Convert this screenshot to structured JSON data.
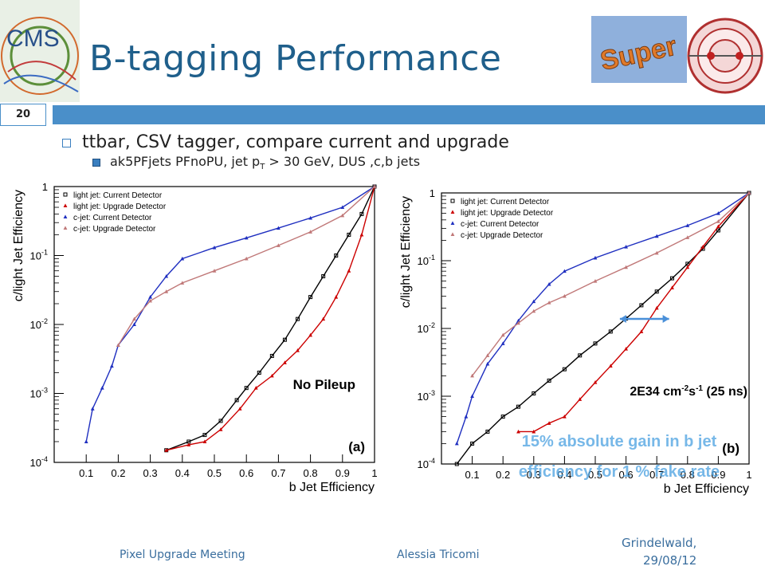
{
  "slide": {
    "title": "B-tagging Performance",
    "number": "20",
    "bullet1": "ttbar, CSV tagger, compare current and upgrade",
    "bullet2": {
      "pre": "ak5PFjets PFnoPU, jet p",
      "sub": "T",
      "post": " > 30 GeV, DUS ,c,b jets"
    },
    "footer_left": "Pixel Upgrade Meeting",
    "footer_center": "Alessia Tricomi",
    "footer_right": "Grindelwald,\n29/08/12",
    "logo_cms_text": "CMS",
    "logo_super_text": "Super",
    "colors": {
      "title": "#1f5f8b",
      "bar": "#4a8fc9",
      "footer": "#3a6e9e"
    }
  },
  "chart_data": [
    {
      "type": "scatter",
      "panel_label": "(a)",
      "annotation": "No Pileup",
      "xlabel": "b Jet Efficiency",
      "ylabel": "c/light Jet Efficiency",
      "xlim": [
        0.0,
        1.0
      ],
      "ylim": [
        0.0001,
        1
      ],
      "yscale": "log",
      "xticks": [
        "0.1",
        "0.2",
        "0.3",
        "0.4",
        "0.5",
        "0.6",
        "0.7",
        "0.8",
        "0.9",
        "1"
      ],
      "yticks": [
        {
          "v": 1,
          "b": "1",
          "e": ""
        },
        {
          "v": 0.1,
          "b": "10",
          "e": "-1"
        },
        {
          "v": 0.01,
          "b": "10",
          "e": "-2"
        },
        {
          "v": 0.001,
          "b": "10",
          "e": "-3"
        },
        {
          "v": 0.0001,
          "b": "10",
          "e": "-4"
        }
      ],
      "legend_position": "top-left",
      "series": [
        {
          "name": "light jet: Current Detector",
          "color": "#000000",
          "marker": "square",
          "x": [
            0.35,
            0.42,
            0.47,
            0.52,
            0.57,
            0.6,
            0.64,
            0.68,
            0.72,
            0.76,
            0.8,
            0.84,
            0.88,
            0.92,
            0.96,
            1.0
          ],
          "y": [
            0.00015,
            0.0002,
            0.00025,
            0.0004,
            0.0008,
            0.0012,
            0.002,
            0.0035,
            0.006,
            0.012,
            0.025,
            0.05,
            0.1,
            0.2,
            0.4,
            1.0
          ]
        },
        {
          "name": "light jet: Upgrade Detector",
          "color": "#cc0000",
          "marker": "triangle",
          "x": [
            0.35,
            0.42,
            0.47,
            0.52,
            0.58,
            0.63,
            0.68,
            0.72,
            0.76,
            0.8,
            0.84,
            0.88,
            0.92,
            0.96,
            1.0
          ],
          "y": [
            0.00015,
            0.00018,
            0.0002,
            0.0003,
            0.0006,
            0.0012,
            0.0018,
            0.0028,
            0.0042,
            0.007,
            0.012,
            0.025,
            0.06,
            0.2,
            1.0
          ]
        },
        {
          "name": "c-jet: Current Detector",
          "color": "#1f2fc0",
          "marker": "triangle",
          "x": [
            0.1,
            0.12,
            0.15,
            0.18,
            0.2,
            0.25,
            0.3,
            0.35,
            0.4,
            0.5,
            0.6,
            0.7,
            0.8,
            0.9,
            1.0
          ],
          "y": [
            0.0002,
            0.0006,
            0.0012,
            0.0025,
            0.005,
            0.01,
            0.025,
            0.05,
            0.09,
            0.13,
            0.18,
            0.25,
            0.35,
            0.5,
            1.0
          ]
        },
        {
          "name": "c-jet: Upgrade Detector",
          "color": "#c07878",
          "marker": "triangle",
          "x": [
            0.2,
            0.25,
            0.3,
            0.35,
            0.4,
            0.5,
            0.6,
            0.7,
            0.8,
            0.9,
            1.0
          ],
          "y": [
            0.005,
            0.012,
            0.022,
            0.03,
            0.04,
            0.06,
            0.09,
            0.14,
            0.22,
            0.38,
            1.0
          ]
        }
      ]
    },
    {
      "type": "scatter",
      "panel_label": "(b)",
      "annotation": {
        "pre": "2E34 cm",
        "sup1": "-2",
        "mid": "s",
        "sup2": "-1",
        "post": " (25 ns)"
      },
      "gain_text": [
        "15% absolute gain in b jet",
        "efficiency for 1 % fake rate"
      ],
      "xlabel": "b Jet Efficiency",
      "ylabel": "c/light Jet Efficiency",
      "xlim": [
        0.0,
        1.0
      ],
      "ylim": [
        0.0001,
        1
      ],
      "yscale": "log",
      "xticks": [
        "0.1",
        "0.2",
        "0.3",
        "0.4",
        "0.5",
        "0.6",
        "0.7",
        "0.8",
        "0.9",
        "1"
      ],
      "yticks": [
        {
          "v": 1,
          "b": "1",
          "e": ""
        },
        {
          "v": 0.1,
          "b": "10",
          "e": "-1"
        },
        {
          "v": 0.01,
          "b": "10",
          "e": "-2"
        },
        {
          "v": 0.001,
          "b": "10",
          "e": "-3"
        },
        {
          "v": 0.0001,
          "b": "10",
          "e": "-4"
        }
      ],
      "legend_position": "top-left",
      "series": [
        {
          "name": "light jet: Current Detector",
          "color": "#000000",
          "marker": "square",
          "x": [
            0.05,
            0.1,
            0.15,
            0.2,
            0.25,
            0.3,
            0.35,
            0.4,
            0.45,
            0.5,
            0.55,
            0.6,
            0.65,
            0.7,
            0.75,
            0.8,
            0.85,
            0.9,
            1.0
          ],
          "y": [
            0.0001,
            0.0002,
            0.0003,
            0.0005,
            0.0007,
            0.0011,
            0.0017,
            0.0025,
            0.004,
            0.006,
            0.009,
            0.014,
            0.022,
            0.035,
            0.055,
            0.09,
            0.15,
            0.28,
            1.0
          ]
        },
        {
          "name": "light jet: Upgrade Detector",
          "color": "#cc0000",
          "marker": "triangle",
          "x": [
            0.25,
            0.3,
            0.35,
            0.4,
            0.45,
            0.5,
            0.55,
            0.6,
            0.65,
            0.7,
            0.75,
            0.8,
            0.85,
            0.9,
            1.0
          ],
          "y": [
            0.0003,
            0.0003,
            0.0004,
            0.0005,
            0.0009,
            0.0016,
            0.0028,
            0.005,
            0.009,
            0.02,
            0.04,
            0.08,
            0.16,
            0.32,
            1.0
          ]
        },
        {
          "name": "c-jet: Current Detector",
          "color": "#1f2fc0",
          "marker": "triangle",
          "x": [
            0.05,
            0.08,
            0.1,
            0.15,
            0.2,
            0.25,
            0.3,
            0.35,
            0.4,
            0.5,
            0.6,
            0.7,
            0.8,
            0.9,
            1.0
          ],
          "y": [
            0.0002,
            0.0005,
            0.001,
            0.003,
            0.006,
            0.013,
            0.025,
            0.045,
            0.07,
            0.11,
            0.16,
            0.23,
            0.33,
            0.5,
            1.0
          ]
        },
        {
          "name": "c-jet: Upgrade Detector",
          "color": "#c07878",
          "marker": "triangle",
          "x": [
            0.1,
            0.15,
            0.2,
            0.25,
            0.3,
            0.35,
            0.4,
            0.5,
            0.6,
            0.7,
            0.8,
            0.9,
            1.0
          ],
          "y": [
            0.002,
            0.004,
            0.008,
            0.012,
            0.018,
            0.024,
            0.03,
            0.05,
            0.08,
            0.13,
            0.22,
            0.38,
            1.0
          ]
        }
      ]
    }
  ]
}
